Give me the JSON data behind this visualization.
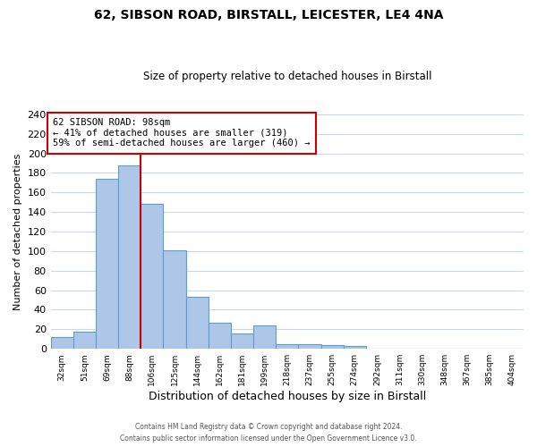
{
  "title": "62, SIBSON ROAD, BIRSTALL, LEICESTER, LE4 4NA",
  "subtitle": "Size of property relative to detached houses in Birstall",
  "xlabel": "Distribution of detached houses by size in Birstall",
  "ylabel": "Number of detached properties",
  "bin_labels": [
    "32sqm",
    "51sqm",
    "69sqm",
    "88sqm",
    "106sqm",
    "125sqm",
    "144sqm",
    "162sqm",
    "181sqm",
    "199sqm",
    "218sqm",
    "237sqm",
    "255sqm",
    "274sqm",
    "292sqm",
    "311sqm",
    "330sqm",
    "348sqm",
    "367sqm",
    "385sqm",
    "404sqm"
  ],
  "bar_heights": [
    12,
    18,
    174,
    188,
    148,
    101,
    53,
    27,
    16,
    24,
    5,
    5,
    4,
    3,
    0,
    0,
    0,
    0,
    0,
    0,
    0
  ],
  "bar_color": "#aec6e8",
  "bar_edge_color": "#5a9fd4",
  "vline_x": 3.5,
  "vline_color": "#cc0000",
  "annotation_text": "62 SIBSON ROAD: 98sqm\n← 41% of detached houses are smaller (319)\n59% of semi-detached houses are larger (460) →",
  "annotation_box_color": "#ffffff",
  "annotation_box_edge": "#cc0000",
  "ylim": [
    0,
    240
  ],
  "yticks": [
    0,
    20,
    40,
    60,
    80,
    100,
    120,
    140,
    160,
    180,
    200,
    220,
    240
  ],
  "footer": "Contains HM Land Registry data © Crown copyright and database right 2024.\nContains public sector information licensed under the Open Government Licence v3.0.",
  "background_color": "#ffffff",
  "grid_color": "#c8d8e8",
  "figwidth": 6.0,
  "figheight": 5.0,
  "dpi": 100
}
